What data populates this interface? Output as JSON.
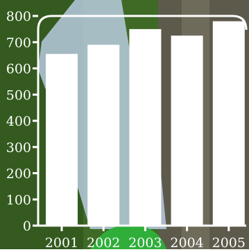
{
  "chart_data": {
    "type": "bar",
    "title": "",
    "xlabel": "",
    "ylabel": "",
    "categories": [
      "2001",
      "2002",
      "2003",
      "2004",
      "2005"
    ],
    "values": [
      655,
      690,
      750,
      725,
      780
    ],
    "ylim": [
      0,
      800
    ],
    "yticks": [
      "0",
      "100",
      "200",
      "300",
      "400",
      "500",
      "600",
      "700",
      "800"
    ],
    "grid": false,
    "legend": "none",
    "colors": {
      "bar": "#ffffff",
      "axis": "#ffffff",
      "text": "#ffffff",
      "grass": "#3f6a26",
      "grass_dark": "#2c4d1a",
      "bark": "#5d5a4c",
      "bark_light": "#7b7766",
      "fabric": "#b9cbe0",
      "accent_green": "#2fae3a"
    }
  }
}
